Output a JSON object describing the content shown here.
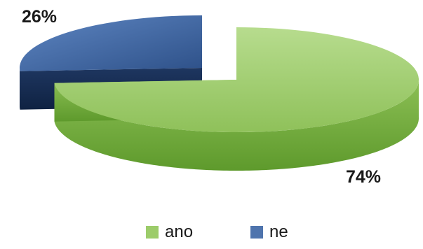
{
  "chart_data": {
    "type": "pie",
    "style": "3d-exploded",
    "slices": [
      {
        "label": "ano",
        "value": 74,
        "data_label": "74%",
        "color": "#9ccc6a"
      },
      {
        "label": "ne",
        "value": 26,
        "data_label": "26%",
        "color": "#4f74ad"
      }
    ],
    "legend_position": "bottom"
  }
}
